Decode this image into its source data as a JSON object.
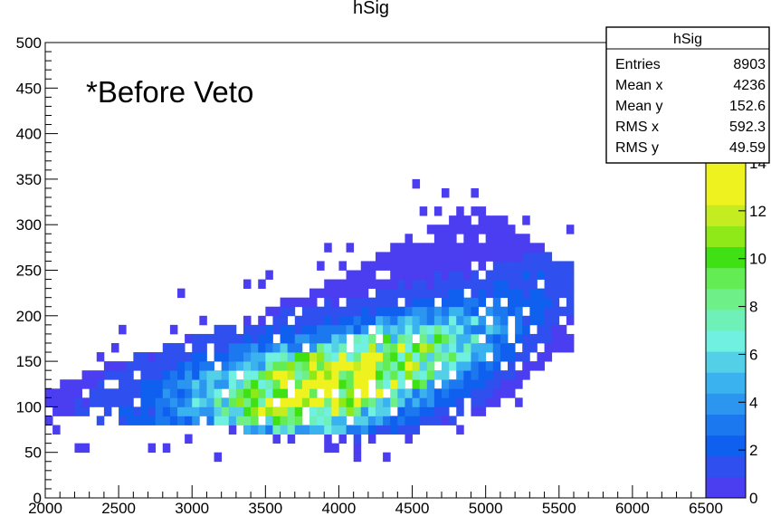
{
  "chart_data": {
    "type": "heatmap",
    "title": "hSig",
    "annotation": "*Before Veto",
    "xlabel": "",
    "ylabel": "",
    "xlim": [
      2000,
      6500
    ],
    "ylim": [
      0,
      500
    ],
    "zlim": [
      0,
      14
    ],
    "x_ticks": [
      "2000",
      "2500",
      "3000",
      "3500",
      "4000",
      "4500",
      "5000",
      "5500",
      "6000",
      "6500"
    ],
    "y_ticks": [
      "0",
      "50",
      "100",
      "150",
      "200",
      "250",
      "300",
      "350",
      "400",
      "450",
      "500"
    ],
    "z_ticks": [
      "0",
      "2",
      "4",
      "6",
      "8",
      "10",
      "12",
      "14"
    ],
    "colorbar_colors": [
      "#4b3df0",
      "#2f4fee",
      "#1060ef",
      "#1c78ee",
      "#2b95f0",
      "#39b2ef",
      "#53cfe8",
      "#6ff0e0",
      "#6ef0b8",
      "#6eef88",
      "#63ec53",
      "#3fe014",
      "#8fe817",
      "#c5ec20",
      "#eef21e",
      "#eef21e"
    ],
    "density_model": {
      "bin_width_x": 50,
      "bin_height_y": 10,
      "ridge_curve": {
        "x": [
          2000,
          3000,
          3500,
          4000,
          4500,
          5000,
          5500
        ],
        "y": [
          90,
          105,
          115,
          125,
          150,
          180,
          230
        ]
      },
      "upper_extent": {
        "x": [
          2000,
          2500,
          3000,
          3500,
          4000,
          4500,
          5000,
          5500
        ],
        "y": [
          120,
          150,
          175,
          205,
          240,
          290,
          320,
          260
        ]
      },
      "lower_extent": {
        "x": [
          2000,
          2500,
          3000,
          3500,
          4000,
          4500,
          5000,
          5500
        ],
        "y": [
          90,
          85,
          80,
          72,
          65,
          72,
          95,
          160
        ]
      },
      "peak_location": {
        "x": 4000,
        "y": 120
      },
      "peak_value": 14
    },
    "stats_box": {
      "title": "hSig",
      "rows": [
        {
          "label": "Entries",
          "value": "8903"
        },
        {
          "label": "Mean x",
          "value": "4236"
        },
        {
          "label": "Mean y",
          "value": "152.6"
        },
        {
          "label": "RMS x",
          "value": "592.3"
        },
        {
          "label": "RMS y",
          "value": "49.59"
        }
      ]
    },
    "grid": false,
    "legend": "none"
  }
}
